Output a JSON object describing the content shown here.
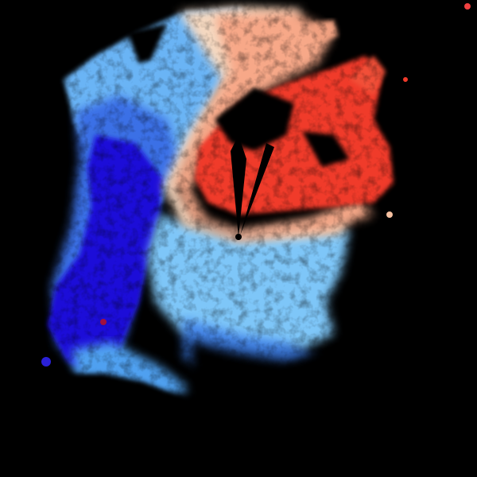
{
  "image": {
    "kind": "doppler-radar-velocity-scan",
    "background": "#000000",
    "colors": {
      "inbound_strong": "#1a10d8",
      "inbound_medium": "#2a5ee8",
      "inbound_light": "#6ab4f5",
      "near_zero": "#f5e0c8",
      "outbound_light": "#f6a07a",
      "outbound_strong": "#f03a2a",
      "radar_site": "#000000"
    }
  }
}
